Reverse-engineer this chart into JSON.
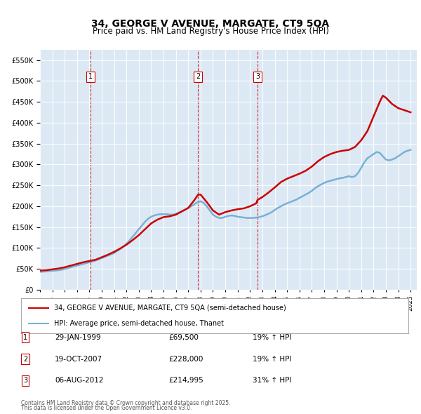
{
  "title": "34, GEORGE V AVENUE, MARGATE, CT9 5QA",
  "subtitle": "Price paid vs. HM Land Registry's House Price Index (HPI)",
  "legend_line1": "34, GEORGE V AVENUE, MARGATE, CT9 5QA (semi-detached house)",
  "legend_line2": "HPI: Average price, semi-detached house, Thanet",
  "footer1": "Contains HM Land Registry data © Crown copyright and database right 2025.",
  "footer2": "This data is licensed under the Open Government Licence v3.0.",
  "transactions": [
    {
      "num": 1,
      "date": "29-JAN-1999",
      "price": 69500,
      "hpi_pct": "19% ↑ HPI",
      "year": 1999.08
    },
    {
      "num": 2,
      "date": "19-OCT-2007",
      "price": 228000,
      "hpi_pct": "19% ↑ HPI",
      "year": 2007.8
    },
    {
      "num": 3,
      "date": "06-AUG-2012",
      "price": 214995,
      "hpi_pct": "31% ↑ HPI",
      "year": 2012.6
    }
  ],
  "property_color": "#cc0000",
  "hpi_color": "#7ab0d4",
  "vline_color": "#cc0000",
  "background_color": "#dce9f5",
  "plot_bg_color": "#dce9f5",
  "ylim": [
    0,
    575000
  ],
  "xlim_start": 1995.0,
  "xlim_end": 2025.5,
  "hpi_data": {
    "years": [
      1995.0,
      1995.25,
      1995.5,
      1995.75,
      1996.0,
      1996.25,
      1996.5,
      1996.75,
      1997.0,
      1997.25,
      1997.5,
      1997.75,
      1998.0,
      1998.25,
      1998.5,
      1998.75,
      1999.0,
      1999.25,
      1999.5,
      1999.75,
      2000.0,
      2000.25,
      2000.5,
      2000.75,
      2001.0,
      2001.25,
      2001.5,
      2001.75,
      2002.0,
      2002.25,
      2002.5,
      2002.75,
      2003.0,
      2003.25,
      2003.5,
      2003.75,
      2004.0,
      2004.25,
      2004.5,
      2004.75,
      2005.0,
      2005.25,
      2005.5,
      2005.75,
      2006.0,
      2006.25,
      2006.5,
      2006.75,
      2007.0,
      2007.25,
      2007.5,
      2007.75,
      2008.0,
      2008.25,
      2008.5,
      2008.75,
      2009.0,
      2009.25,
      2009.5,
      2009.75,
      2010.0,
      2010.25,
      2010.5,
      2010.75,
      2011.0,
      2011.25,
      2011.5,
      2011.75,
      2012.0,
      2012.25,
      2012.5,
      2012.75,
      2013.0,
      2013.25,
      2013.5,
      2013.75,
      2014.0,
      2014.25,
      2014.5,
      2014.75,
      2015.0,
      2015.25,
      2015.5,
      2015.75,
      2016.0,
      2016.25,
      2016.5,
      2016.75,
      2017.0,
      2017.25,
      2017.5,
      2017.75,
      2018.0,
      2018.25,
      2018.5,
      2018.75,
      2019.0,
      2019.25,
      2019.5,
      2019.75,
      2020.0,
      2020.25,
      2020.5,
      2020.75,
      2021.0,
      2021.25,
      2021.5,
      2021.75,
      2022.0,
      2022.25,
      2022.5,
      2022.75,
      2023.0,
      2023.25,
      2023.5,
      2023.75,
      2024.0,
      2024.25,
      2024.5,
      2024.75,
      2025.0
    ],
    "values": [
      43000,
      43500,
      44000,
      44500,
      45500,
      46000,
      47000,
      48000,
      50000,
      52000,
      54000,
      56000,
      58000,
      60000,
      62000,
      64000,
      66000,
      68000,
      70000,
      73000,
      76000,
      79000,
      82000,
      85000,
      88000,
      93000,
      98000,
      104000,
      110000,
      118000,
      127000,
      136000,
      145000,
      154000,
      163000,
      170000,
      175000,
      178000,
      180000,
      181000,
      181000,
      181000,
      180000,
      180000,
      182000,
      185000,
      188000,
      192000,
      196000,
      200000,
      205000,
      210000,
      212000,
      208000,
      200000,
      190000,
      180000,
      175000,
      172000,
      172000,
      175000,
      177000,
      178000,
      177000,
      175000,
      174000,
      173000,
      172000,
      172000,
      172000,
      173000,
      174000,
      176000,
      179000,
      182000,
      186000,
      191000,
      196000,
      200000,
      204000,
      207000,
      210000,
      213000,
      216000,
      220000,
      224000,
      228000,
      232000,
      237000,
      243000,
      248000,
      252000,
      256000,
      259000,
      261000,
      263000,
      265000,
      267000,
      268000,
      270000,
      272000,
      270000,
      272000,
      280000,
      292000,
      305000,
      315000,
      320000,
      325000,
      330000,
      328000,
      320000,
      312000,
      310000,
      312000,
      315000,
      320000,
      325000,
      330000,
      333000,
      335000
    ]
  },
  "property_data": {
    "years": [
      1995.0,
      1995.5,
      1996.0,
      1996.5,
      1997.0,
      1997.5,
      1998.0,
      1998.5,
      1999.0,
      1999.08,
      1999.5,
      2000.0,
      2000.5,
      2001.0,
      2001.5,
      2002.0,
      2002.5,
      2003.0,
      2003.5,
      2004.0,
      2004.5,
      2005.0,
      2005.5,
      2006.0,
      2006.5,
      2007.0,
      2007.5,
      2007.8,
      2008.0,
      2008.5,
      2009.0,
      2009.5,
      2010.0,
      2010.5,
      2011.0,
      2011.5,
      2012.0,
      2012.5,
      2012.6,
      2013.0,
      2013.5,
      2014.0,
      2014.5,
      2015.0,
      2015.5,
      2016.0,
      2016.5,
      2017.0,
      2017.5,
      2018.0,
      2018.5,
      2019.0,
      2019.5,
      2020.0,
      2020.5,
      2021.0,
      2021.5,
      2022.0,
      2022.5,
      2022.75,
      2023.0,
      2023.5,
      2024.0,
      2024.5,
      2025.0
    ],
    "values": [
      46000,
      47000,
      49000,
      51000,
      54000,
      58000,
      62000,
      66000,
      69000,
      69500,
      72000,
      78000,
      84000,
      91000,
      99000,
      108000,
      119000,
      131000,
      145000,
      159000,
      168000,
      174000,
      176000,
      180000,
      188000,
      196000,
      215000,
      228000,
      228000,
      210000,
      190000,
      180000,
      186000,
      190000,
      193000,
      195000,
      200000,
      207000,
      214995,
      222000,
      233000,
      245000,
      258000,
      266000,
      272000,
      278000,
      285000,
      295000,
      308000,
      318000,
      325000,
      330000,
      333000,
      335000,
      342000,
      358000,
      380000,
      415000,
      450000,
      465000,
      460000,
      445000,
      435000,
      430000,
      425000
    ]
  }
}
